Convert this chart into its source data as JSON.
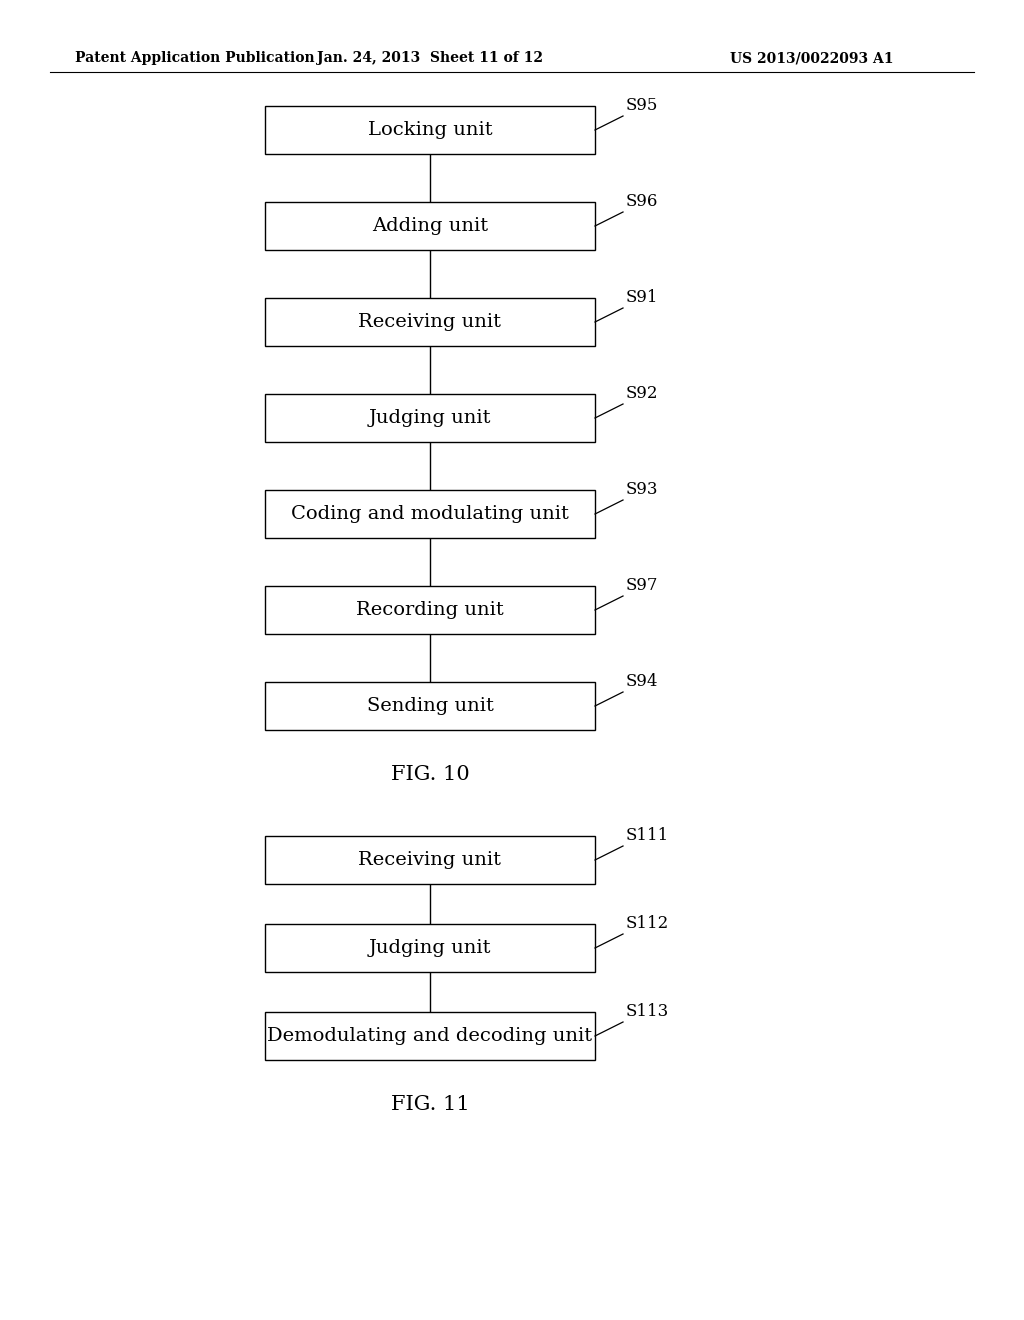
{
  "header_left": "Patent Application Publication",
  "header_mid": "Jan. 24, 2013  Sheet 11 of 12",
  "header_right": "US 2013/0022093 A1",
  "fig10_title": "FIG. 10",
  "fig11_title": "FIG. 11",
  "fig10_boxes": [
    {
      "label": "Locking unit",
      "step": "S95"
    },
    {
      "label": "Adding unit",
      "step": "S96"
    },
    {
      "label": "Receiving unit",
      "step": "S91"
    },
    {
      "label": "Judging unit",
      "step": "S92"
    },
    {
      "label": "Coding and modulating unit",
      "step": "S93"
    },
    {
      "label": "Recording unit",
      "step": "S97"
    },
    {
      "label": "Sending unit",
      "step": "S94"
    }
  ],
  "fig11_boxes": [
    {
      "label": "Receiving unit",
      "step": "S111"
    },
    {
      "label": "Judging unit",
      "step": "S112"
    },
    {
      "label": "Demodulating and decoding unit",
      "step": "S113"
    }
  ],
  "background_color": "#ffffff",
  "box_facecolor": "#ffffff",
  "box_edgecolor": "#000000",
  "text_color": "#000000",
  "line_color": "#000000",
  "header_line_color": "#000000"
}
